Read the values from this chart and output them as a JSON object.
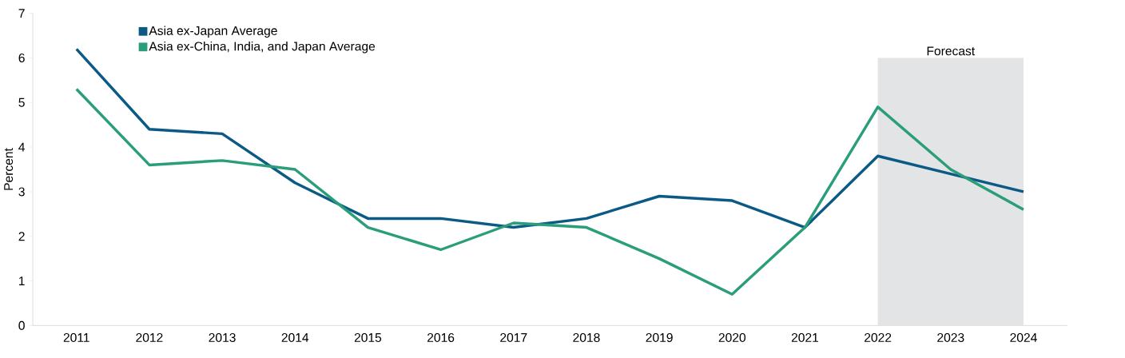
{
  "chart_data": {
    "type": "line",
    "ylabel": "Percent",
    "categories": [
      "2011",
      "2012",
      "2013",
      "2014",
      "2015",
      "2016",
      "2017",
      "2018",
      "2019",
      "2020",
      "2021",
      "2022",
      "2023",
      "2024"
    ],
    "series": [
      {
        "name": "Asia ex-Japan Average",
        "color": "#0b5a86",
        "values": [
          6.2,
          4.4,
          4.3,
          3.2,
          2.4,
          2.4,
          2.2,
          2.4,
          2.9,
          2.8,
          2.2,
          3.8,
          3.4,
          3.0
        ]
      },
      {
        "name": "Asia ex-China, India, and Japan Average",
        "color": "#2a9d7b",
        "values": [
          5.3,
          3.6,
          3.7,
          3.5,
          2.2,
          1.7,
          2.3,
          2.2,
          1.5,
          0.7,
          2.2,
          4.9,
          3.5,
          2.6
        ]
      }
    ],
    "ylim": [
      0,
      7
    ],
    "yticks": [
      0,
      1,
      2,
      3,
      4,
      5,
      6,
      7
    ],
    "bands": [
      {
        "axis": "x",
        "from": "2022",
        "to": "2024",
        "label": "Forecast",
        "color": "#e3e4e6"
      }
    ],
    "legend": "top left",
    "grid": false,
    "marker": "none",
    "line_style": "solid"
  }
}
